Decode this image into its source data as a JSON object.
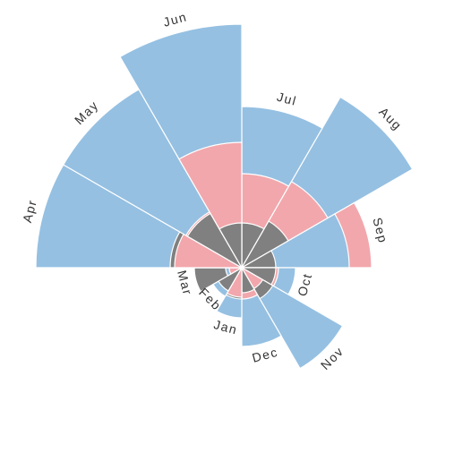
{
  "chart_data": {
    "type": "polar-area",
    "title": "",
    "categories": [
      "Jul",
      "Aug",
      "Sep",
      "Oct",
      "Nov",
      "Dec",
      "Jan",
      "Feb",
      "Mar",
      "Apr",
      "May",
      "Jun"
    ],
    "r_max": 270,
    "series": [
      {
        "color": "#95c0e2",
        "values": [
          180,
          220,
          120,
          60,
          130,
          88,
          56,
          37,
          18,
          230,
          230,
          272
        ]
      },
      {
        "color": "#f2a7ac",
        "values": [
          105,
          111,
          145,
          41,
          27,
          35,
          33,
          30,
          14,
          75,
          72,
          140
        ]
      },
      {
        "color": "#808080",
        "values": [
          50,
          60,
          38,
          38,
          40,
          28,
          35,
          30,
          53,
          80,
          70,
          50
        ]
      }
    ]
  }
}
